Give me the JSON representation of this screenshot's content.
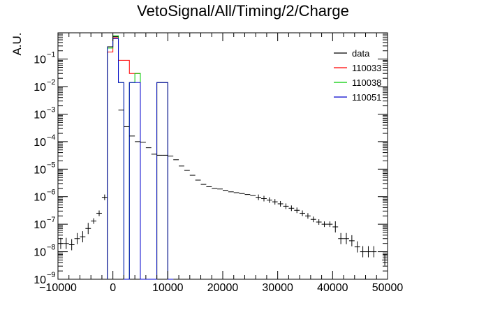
{
  "chart_data": {
    "type": "histogram",
    "title": "VetoSignal/All/Timing/2/Charge",
    "xlabel": "",
    "ylabel": "A.U.",
    "xlim": [
      -10000,
      50000
    ],
    "ylim": [
      1e-09,
      0.9
    ],
    "yscale": "log",
    "grid": false,
    "legend_position": "top-right",
    "x_tick_labels": [
      "−10000",
      "0",
      "10000",
      "20000",
      "30000",
      "40000",
      "50000"
    ],
    "x_ticks": [
      -10000,
      0,
      10000,
      20000,
      30000,
      40000,
      50000
    ],
    "y_ticks": [
      1e-09,
      1e-08,
      1e-07,
      1e-06,
      1e-05,
      0.0001,
      0.001,
      0.01,
      0.1
    ],
    "y_tick_labels": [
      {
        "base": "10",
        "exp": "−9"
      },
      {
        "base": "10",
        "exp": "−8"
      },
      {
        "base": "10",
        "exp": "−7"
      },
      {
        "base": "10",
        "exp": "−6"
      },
      {
        "base": "10",
        "exp": "−5"
      },
      {
        "base": "10",
        "exp": "−4"
      },
      {
        "base": "10",
        "exp": "−3"
      },
      {
        "base": "10",
        "exp": "−2"
      },
      {
        "base": "10",
        "exp": "−1"
      }
    ],
    "bin_width": 1000,
    "legend": [
      {
        "name": "data",
        "color": "#000000"
      },
      {
        "name": "110033",
        "color": "#ff0000"
      },
      {
        "name": "110038",
        "color": "#00cc00"
      },
      {
        "name": "110051",
        "color": "#0000cc"
      }
    ],
    "data_points": {
      "name": "data",
      "x": [
        -9500,
        -8500,
        -7500,
        -6500,
        -5500,
        -4500,
        -3500,
        -2500,
        -1500,
        -500,
        500,
        1500,
        2500,
        3500,
        4500,
        5500,
        6500,
        7500,
        8500,
        9500,
        10500,
        11500,
        12500,
        13500,
        14500,
        15500,
        16500,
        17500,
        18500,
        19500,
        20500,
        21500,
        22500,
        23500,
        24500,
        25500,
        26500,
        27500,
        28500,
        29500,
        30500,
        31500,
        32500,
        33500,
        34500,
        35500,
        36500,
        37500,
        38500,
        39500,
        40500,
        41500,
        42500,
        43500,
        44500,
        45500,
        46500,
        47500,
        49500
      ],
      "y": [
        2e-08,
        2e-08,
        1.8e-08,
        3e-08,
        3.5e-08,
        7e-08,
        1.3e-07,
        2.5e-07,
        9.5e-07,
        0.28,
        0.65,
        0.0014,
        0.00035,
        0.00016,
        0.0001,
        9.5e-05,
        6e-05,
        3.5e-05,
        3.2e-05,
        3.2e-05,
        3e-05,
        2.2e-05,
        1.3e-05,
        9e-06,
        6e-06,
        4e-06,
        2.8e-06,
        2.3e-06,
        2e-06,
        1.9e-06,
        1.7e-06,
        1.5e-06,
        1.4e-06,
        1.3e-06,
        1.2e-06,
        1.1e-06,
        9.5e-07,
        8.5e-07,
        7.5e-07,
        6.5e-07,
        5.5e-07,
        4.5e-07,
        3.8e-07,
        3.2e-07,
        2.5e-07,
        2e-07,
        1.5e-07,
        1.2e-07,
        1e-07,
        1e-07,
        8e-08,
        3e-08,
        3e-08,
        2.5e-08,
        1.5e-08,
        1e-08,
        1e-08,
        1e-08,
        5e-09
      ]
    },
    "series": [
      {
        "name": "110033",
        "color": "#ff0000",
        "bins": [
          [
            -1000,
            0.18
          ],
          [
            0,
            0.6
          ],
          [
            1000,
            0.09
          ],
          [
            2000,
            0.09
          ],
          [
            3000,
            0.03
          ],
          [
            4000,
            0.03
          ],
          [
            5000,
            1e-09
          ],
          [
            6000,
            1e-09
          ],
          [
            7000,
            1e-09
          ],
          [
            8000,
            0.014
          ],
          [
            9000,
            0.014
          ],
          [
            10000,
            1e-09
          ]
        ]
      },
      {
        "name": "110038",
        "color": "#00cc00",
        "bins": [
          [
            -1000,
            0.25
          ],
          [
            0,
            0.7
          ],
          [
            1000,
            0.014
          ],
          [
            2000,
            1e-09
          ],
          [
            3000,
            0.014
          ],
          [
            4000,
            0.03
          ],
          [
            5000,
            1e-09
          ],
          [
            6000,
            1e-09
          ],
          [
            7000,
            1e-09
          ],
          [
            8000,
            0.014
          ],
          [
            9000,
            0.014
          ],
          [
            10000,
            1e-09
          ]
        ]
      },
      {
        "name": "110051",
        "color": "#0000cc",
        "bins": [
          [
            -1000,
            0.28
          ],
          [
            0,
            0.55
          ],
          [
            1000,
            0.014
          ],
          [
            2000,
            1e-09
          ],
          [
            3000,
            0.014
          ],
          [
            4000,
            0.014
          ],
          [
            5000,
            1e-09
          ],
          [
            6000,
            1e-09
          ],
          [
            7000,
            1e-09
          ],
          [
            8000,
            0.014
          ],
          [
            9000,
            0.014
          ],
          [
            10000,
            1e-09
          ]
        ]
      }
    ]
  }
}
